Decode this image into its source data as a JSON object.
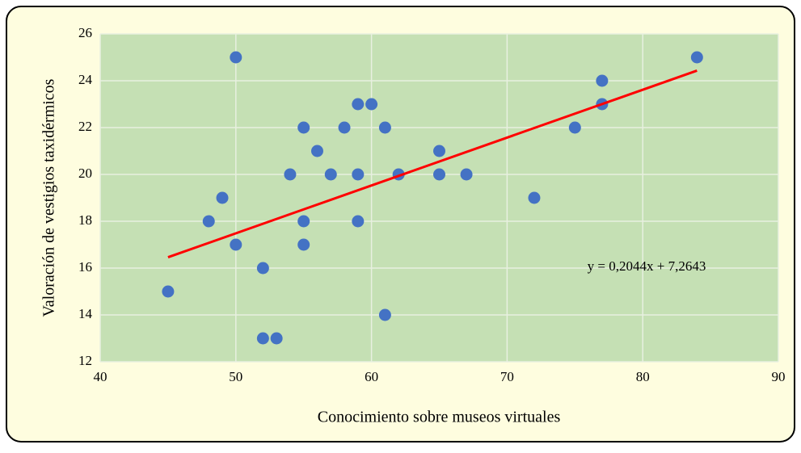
{
  "chart_data": {
    "type": "scatter",
    "x_label": "Conocimiento sobre museos virtuales",
    "y_label": "Valoración de vestigios taxidérmicos",
    "x": [
      45,
      48,
      49,
      50,
      50,
      52,
      52,
      53,
      54,
      55,
      55,
      55,
      56,
      57,
      58,
      59,
      59,
      59,
      60,
      61,
      61,
      62,
      65,
      65,
      67,
      72,
      75,
      77,
      77,
      84
    ],
    "values": [
      15,
      18,
      19,
      25,
      17,
      16,
      13,
      13,
      20,
      22,
      18,
      17,
      21,
      20,
      22,
      23,
      20,
      18,
      23,
      22,
      14,
      20,
      21,
      20,
      20,
      19,
      22,
      24,
      23,
      25
    ],
    "color": "#4472c4",
    "xlim": [
      40,
      90
    ],
    "xticks": [
      40,
      50,
      60,
      70,
      80,
      90
    ],
    "ylim": [
      12,
      26
    ],
    "yticks": [
      12,
      14,
      16,
      18,
      20,
      22,
      24,
      26
    ],
    "grid": true,
    "trendline": {
      "slope": 0.2044,
      "intercept": 7.2643,
      "color": "#ff0000",
      "label": "y = 0,2044x + 7,2643"
    }
  }
}
